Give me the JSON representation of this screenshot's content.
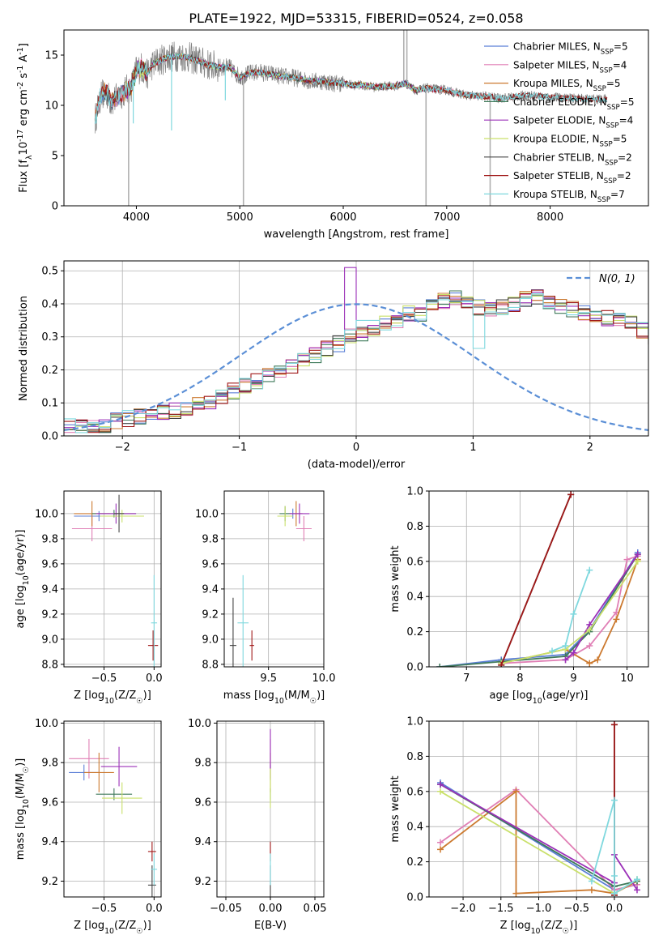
{
  "figure_title": "PLATE=1922, MJD=53315, FIBERID=0524, z=0.058",
  "colors": {
    "Chabrier MILES": "#5b7fd6",
    "Salpeter MILES": "#e07fb5",
    "Kroupa MILES": "#cc7a30",
    "Chabrier ELODIE": "#3f7a5a",
    "Salpeter ELODIE": "#9b30b8",
    "Kroupa ELODIE": "#c9e06a",
    "Chabrier STELIB": "#444444",
    "Salpeter STELIB": "#a01818",
    "Kroupa STELIB": "#7fd8de",
    "data": "#808080",
    "normal": "#5b8fd6"
  },
  "chart_data": [
    {
      "id": "spectrum",
      "type": "line",
      "title": "PLATE=1922, MJD=53315, FIBERID=0524, z=0.058",
      "xlabel": "wavelength [Angstrom, rest frame]",
      "ylabel": "Flux [f$_\\lambda$10$^{-17}$ erg cm$^{-2}$ s$^{-1}$ A$^{-1}$]",
      "xlim": [
        3300,
        8950
      ],
      "ylim": [
        0,
        17.5
      ],
      "xticks": [
        4000,
        5000,
        6000,
        7000,
        8000
      ],
      "yticks": [
        0,
        5,
        10,
        15
      ],
      "legend_position": "top-right",
      "legend": [
        {
          "name": "Chabrier MILES, N$_{SSP}$=5",
          "key": "Chabrier MILES"
        },
        {
          "name": "Salpeter MILES, N$_{SSP}$=4",
          "key": "Salpeter MILES"
        },
        {
          "name": "Kroupa MILES, N$_{SSP}$=5",
          "key": "Kroupa MILES"
        },
        {
          "name": "Chabrier ELODIE, N$_{SSP}$=5",
          "key": "Chabrier ELODIE"
        },
        {
          "name": "Salpeter ELODIE, N$_{SSP}$=4",
          "key": "Salpeter ELODIE"
        },
        {
          "name": "Kroupa ELODIE, N$_{SSP}$=5",
          "key": "Kroupa ELODIE"
        },
        {
          "name": "Chabrier STELIB, N$_{SSP}$=2",
          "key": "Chabrier STELIB"
        },
        {
          "name": "Salpeter STELIB, N$_{SSP}$=2",
          "key": "Salpeter STELIB"
        },
        {
          "name": "Kroupa STELIB, N$_{SSP}$=7",
          "key": "Kroupa STELIB"
        }
      ],
      "continuum": {
        "x": [
          3600,
          3650,
          3700,
          3750,
          3800,
          3850,
          3900,
          3950,
          4000,
          4050,
          4100,
          4150,
          4200,
          4300,
          4400,
          4500,
          4600,
          4700,
          4800,
          4900,
          5000,
          5100,
          5200,
          5300,
          5400,
          5500,
          5600,
          5700,
          5800,
          5900,
          6000,
          6100,
          6200,
          6300,
          6400,
          6500,
          6600,
          6700,
          6800,
          6900,
          7000,
          7100,
          7200,
          7300,
          7400,
          7500,
          7600,
          7700,
          7800,
          8000,
          8200,
          8400
        ],
        "y": [
          8.5,
          10.8,
          11.5,
          10.4,
          10.6,
          11.2,
          11.5,
          11.8,
          13.5,
          13.8,
          13.0,
          14.0,
          14.3,
          14.8,
          14.9,
          14.8,
          14.4,
          14.0,
          13.8,
          13.8,
          12.8,
          13.2,
          13.3,
          13.1,
          12.9,
          12.8,
          12.6,
          12.4,
          12.4,
          12.2,
          12.2,
          12.0,
          12.0,
          11.8,
          11.9,
          11.9,
          12.2,
          11.5,
          11.7,
          11.6,
          11.5,
          11.2,
          11.0,
          10.9,
          10.9,
          10.7,
          10.8,
          10.9,
          11.0,
          10.8,
          10.7,
          10.6
        ]
      }
    },
    {
      "id": "residuals",
      "type": "histogram",
      "xlabel": "(data-model)/error",
      "ylabel": "Normed distribution",
      "xlim": [
        -2.5,
        2.5
      ],
      "ylim": [
        0,
        0.53
      ],
      "xticks": [
        -2,
        -1,
        0,
        1,
        2
      ],
      "yticks": [
        0.0,
        0.1,
        0.2,
        0.3,
        0.4,
        0.5
      ],
      "grid": true,
      "legend_position": "top-right",
      "legend": "$\\mathcal{N}(0, 1)$",
      "bin_width": 0.1,
      "bin_start": -2.5,
      "base_counts": [
        0.035,
        0.033,
        0.03,
        0.032,
        0.045,
        0.053,
        0.06,
        0.063,
        0.07,
        0.075,
        0.085,
        0.095,
        0.1,
        0.12,
        0.135,
        0.15,
        0.165,
        0.18,
        0.2,
        0.21,
        0.225,
        0.245,
        0.265,
        0.28,
        0.3,
        0.31,
        0.32,
        0.34,
        0.35,
        0.37,
        0.37,
        0.39,
        0.41,
        0.42,
        0.41,
        0.39,
        0.38,
        0.39,
        0.4,
        0.415,
        0.42,
        0.41,
        0.39,
        0.385,
        0.37,
        0.36,
        0.355,
        0.35,
        0.34,
        0.32,
        0.3,
        0.28,
        0.27,
        0.25,
        0.235,
        0.22,
        0.2,
        0.18,
        0.165,
        0.15,
        0.135,
        0.125,
        0.11,
        0.1,
        0.09,
        0.08,
        0.07,
        0.065,
        0.06,
        0.055,
        0.05,
        0.045,
        0.042,
        0.035,
        0.03
      ]
    },
    {
      "id": "age_vs_Z",
      "type": "errorbar",
      "xlabel": "Z [log$_{10}$($Z/Z_\\odot$)]",
      "ylabel": "age  [log$_{10}$($age/yr$)]",
      "xlim": [
        -0.9,
        0.07
      ],
      "ylim": [
        8.78,
        10.18
      ],
      "xticks": [
        -0.5,
        0.0
      ],
      "yticks": [
        8.8,
        9.0,
        9.2,
        9.4,
        9.6,
        9.8,
        10.0
      ],
      "grid": true,
      "points": [
        {
          "key": "Chabrier MILES",
          "x": -0.55,
          "y": 9.98,
          "xerr": 0.25,
          "yerr": 0.04
        },
        {
          "key": "Salpeter MILES",
          "x": -0.62,
          "y": 9.88,
          "xerr": 0.2,
          "yerr": 0.1
        },
        {
          "key": "Kroupa MILES",
          "x": -0.62,
          "y": 10.0,
          "xerr": 0.18,
          "yerr": 0.1
        },
        {
          "key": "Chabrier ELODIE",
          "x": -0.4,
          "y": 10.0,
          "xerr": 0.22,
          "yerr": 0.03
        },
        {
          "key": "Salpeter ELODIE",
          "x": -0.38,
          "y": 10.0,
          "xerr": 0.2,
          "yerr": 0.08
        },
        {
          "key": "Kroupa ELODIE",
          "x": -0.32,
          "y": 9.98,
          "xerr": 0.22,
          "yerr": 0.05
        },
        {
          "key": "Chabrier STELIB",
          "x": -0.35,
          "y": 10.0,
          "xerr": 0.05,
          "yerr": 0.15
        },
        {
          "key": "Salpeter STELIB",
          "x": -0.01,
          "y": 8.95,
          "xerr": 0.05,
          "yerr": 0.12
        },
        {
          "key": "Kroupa STELIB",
          "x": 0.0,
          "y": 9.13,
          "xerr": 0.03,
          "yerr": 0.38
        }
      ]
    },
    {
      "id": "age_vs_mass",
      "type": "errorbar",
      "xlabel": "mass [log$_{10}$($M/M_\\odot$)]",
      "xlim": [
        9.1,
        10.0
      ],
      "ylim": [
        8.78,
        10.18
      ],
      "xticks": [
        9.5,
        10.0
      ],
      "yticks": [
        8.8,
        9.0,
        9.2,
        9.4,
        9.6,
        9.8,
        10.0
      ],
      "grid": true,
      "points": [
        {
          "key": "Chabrier MILES",
          "x": 9.72,
          "y": 10.0,
          "xerr": 0.08,
          "yerr": 0.04
        },
        {
          "key": "Salpeter MILES",
          "x": 9.82,
          "y": 9.88,
          "xerr": 0.07,
          "yerr": 0.1
        },
        {
          "key": "Kroupa MILES",
          "x": 9.75,
          "y": 10.0,
          "xerr": 0.06,
          "yerr": 0.1
        },
        {
          "key": "Chabrier ELODIE",
          "x": 9.65,
          "y": 10.0,
          "xerr": 0.05,
          "yerr": 0.06
        },
        {
          "key": "Salpeter ELODIE",
          "x": 9.78,
          "y": 10.0,
          "xerr": 0.09,
          "yerr": 0.08
        },
        {
          "key": "Kroupa ELODIE",
          "x": 9.65,
          "y": 9.98,
          "xerr": 0.07,
          "yerr": 0.08
        },
        {
          "key": "Chabrier STELIB",
          "x": 9.18,
          "y": 8.95,
          "xerr": 0.03,
          "yerr": 0.38
        },
        {
          "key": "Salpeter STELIB",
          "x": 9.35,
          "y": 8.95,
          "xerr": 0.02,
          "yerr": 0.12
        },
        {
          "key": "Kroupa STELIB",
          "x": 9.27,
          "y": 9.13,
          "xerr": 0.05,
          "yerr": 0.38
        }
      ]
    },
    {
      "id": "weight_vs_age",
      "type": "line",
      "xlabel": "age  [log$_{10}$($age/yr$)]",
      "ylabel": "mass weight",
      "xlim": [
        6.3,
        10.4
      ],
      "ylim": [
        0,
        1.0
      ],
      "xticks": [
        7,
        8,
        9,
        10
      ],
      "yticks": [
        0.0,
        0.2,
        0.4,
        0.6,
        0.8,
        1.0
      ],
      "grid": true,
      "series": [
        {
          "key": "Chabrier MILES",
          "x": [
            6.5,
            7.65,
            8.85,
            9.3,
            10.2
          ],
          "y": [
            0.0,
            0.04,
            0.07,
            0.21,
            0.65
          ]
        },
        {
          "key": "Salpeter MILES",
          "x": [
            7.65,
            8.85,
            9.3,
            9.8,
            10.0,
            10.2
          ],
          "y": [
            0.02,
            0.04,
            0.12,
            0.31,
            0.61,
            0.63
          ]
        },
        {
          "key": "Kroupa MILES",
          "x": [
            7.65,
            8.85,
            9.3,
            9.45,
            9.8,
            10.2
          ],
          "y": [
            0.02,
            0.1,
            0.02,
            0.04,
            0.27,
            0.61
          ]
        },
        {
          "key": "Chabrier ELODIE",
          "x": [
            6.5,
            7.65,
            8.85,
            9.3,
            10.2
          ],
          "y": [
            0.0,
            0.03,
            0.06,
            0.2,
            0.64
          ]
        },
        {
          "key": "Salpeter ELODIE",
          "x": [
            8.85,
            9.0,
            9.3,
            10.2
          ],
          "y": [
            0.04,
            0.08,
            0.24,
            0.64
          ]
        },
        {
          "key": "Kroupa ELODIE",
          "x": [
            7.65,
            8.85,
            9.3,
            10.2
          ],
          "y": [
            0.02,
            0.1,
            0.21,
            0.6
          ]
        },
        {
          "key": "Chabrier STELIB",
          "x": [
            7.65,
            8.95
          ],
          "y": [
            0.01,
            0.98
          ]
        },
        {
          "key": "Salpeter STELIB",
          "x": [
            7.65,
            8.95
          ],
          "y": [
            0.01,
            0.98
          ]
        },
        {
          "key": "Kroupa STELIB",
          "x": [
            8.6,
            8.85,
            9.0,
            9.3
          ],
          "y": [
            0.09,
            0.12,
            0.3,
            0.55
          ]
        }
      ]
    },
    {
      "id": "mass_vs_Z",
      "type": "errorbar",
      "xlabel": "Z [log$_{10}$($Z/Z_\\odot$)]",
      "ylabel": "mass [log$_{10}$($M/M_\\odot$)]",
      "xlim": [
        -0.9,
        0.07
      ],
      "ylim": [
        9.12,
        10.01
      ],
      "xticks": [
        -0.5,
        0.0
      ],
      "yticks": [
        9.2,
        9.4,
        9.6,
        9.8,
        10.0
      ],
      "grid": true,
      "points": [
        {
          "key": "Chabrier MILES",
          "x": -0.7,
          "y": 9.75,
          "xerr": 0.15,
          "yerr": 0.04
        },
        {
          "key": "Salpeter MILES",
          "x": -0.65,
          "y": 9.82,
          "xerr": 0.2,
          "yerr": 0.1
        },
        {
          "key": "Kroupa MILES",
          "x": -0.55,
          "y": 9.75,
          "xerr": 0.15,
          "yerr": 0.1
        },
        {
          "key": "Chabrier ELODIE",
          "x": -0.4,
          "y": 9.64,
          "xerr": 0.18,
          "yerr": 0.03
        },
        {
          "key": "Salpeter ELODIE",
          "x": -0.35,
          "y": 9.78,
          "xerr": 0.18,
          "yerr": 0.1
        },
        {
          "key": "Kroupa ELODIE",
          "x": -0.32,
          "y": 9.62,
          "xerr": 0.2,
          "yerr": 0.08
        },
        {
          "key": "Chabrier STELIB",
          "x": -0.02,
          "y": 9.18,
          "xerr": 0.04,
          "yerr": 0.1
        },
        {
          "key": "Salpeter STELIB",
          "x": -0.02,
          "y": 9.35,
          "xerr": 0.04,
          "yerr": 0.05
        },
        {
          "key": "Kroupa STELIB",
          "x": 0.0,
          "y": 9.26,
          "xerr": 0.03,
          "yerr": 0.08
        }
      ]
    },
    {
      "id": "mass_vs_ebv",
      "type": "errorbar",
      "xlabel": "E(B-V)",
      "xlim": [
        -0.06,
        0.06
      ],
      "ylim": [
        9.12,
        10.01
      ],
      "xticks": [
        -0.05,
        0.0,
        0.05
      ],
      "yticks": [
        9.2,
        9.4,
        9.6,
        9.8,
        10.0
      ],
      "grid": true,
      "points": [
        {
          "key": "Chabrier MILES",
          "x": 0.0,
          "y": 9.75,
          "xerr": 0.0,
          "yerr": 0.04
        },
        {
          "key": "Salpeter MILES",
          "x": 0.0,
          "y": 9.82,
          "xerr": 0.0,
          "yerr": 0.1
        },
        {
          "key": "Kroupa MILES",
          "x": 0.0,
          "y": 9.75,
          "xerr": 0.0,
          "yerr": 0.1
        },
        {
          "key": "Chabrier ELODIE",
          "x": 0.0,
          "y": 9.64,
          "xerr": 0.0,
          "yerr": 0.03
        },
        {
          "key": "Salpeter ELODIE",
          "x": 0.0,
          "y": 9.87,
          "xerr": 0.0,
          "yerr": 0.1
        },
        {
          "key": "Kroupa ELODIE",
          "x": 0.0,
          "y": 9.67,
          "xerr": 0.0,
          "yerr": 0.1
        },
        {
          "key": "Chabrier STELIB",
          "x": 0.0,
          "y": 9.18,
          "xerr": 0.0,
          "yerr": 0.1
        },
        {
          "key": "Salpeter STELIB",
          "x": 0.0,
          "y": 9.35,
          "xerr": 0.0,
          "yerr": 0.05
        },
        {
          "key": "Kroupa STELIB",
          "x": 0.0,
          "y": 9.26,
          "xerr": 0.0,
          "yerr": 0.08
        }
      ]
    },
    {
      "id": "weight_vs_Z",
      "type": "line",
      "xlabel": "Z [log$_{10}$($Z/Z_\\odot$)]",
      "ylabel": "mass weight",
      "xlim": [
        -2.45,
        0.45
      ],
      "ylim": [
        0,
        1.0
      ],
      "xticks": [
        -2.0,
        -1.5,
        -1.0,
        -0.5,
        0.0
      ],
      "yticks": [
        0.0,
        0.2,
        0.4,
        0.6,
        0.8,
        1.0
      ],
      "grid": true,
      "series": [
        {
          "key": "Chabrier MILES",
          "x": [
            -2.3,
            0.0,
            0.3
          ],
          "y": [
            0.65,
            0.04,
            0.07
          ]
        },
        {
          "key": "Salpeter MILES",
          "x": [
            -2.3,
            -1.3,
            0.0,
            0.3
          ],
          "y": [
            0.31,
            0.61,
            0.04,
            0.07
          ]
        },
        {
          "key": "Kroupa MILES",
          "x": [
            -2.3,
            -1.3,
            -1.3,
            -0.3,
            0.0,
            0.3
          ],
          "y": [
            0.27,
            0.6,
            0.02,
            0.04,
            0.02,
            0.09
          ]
        },
        {
          "key": "Chabrier ELODIE",
          "x": [
            -2.3,
            0.0,
            0.3
          ],
          "y": [
            0.64,
            0.06,
            0.09
          ]
        },
        {
          "key": "Salpeter ELODIE",
          "x": [
            -2.3,
            0.0,
            0.0,
            0.3
          ],
          "y": [
            0.64,
            0.08,
            0.24,
            0.04
          ]
        },
        {
          "key": "Kroupa ELODIE",
          "x": [
            -2.3,
            0.0,
            0.3
          ],
          "y": [
            0.6,
            0.02,
            0.1
          ]
        },
        {
          "key": "Chabrier STELIB",
          "x": [
            0.0,
            0.0
          ],
          "y": [
            0.01,
            0.98
          ]
        },
        {
          "key": "Salpeter STELIB",
          "x": [
            0.0,
            0.0
          ],
          "y": [
            0.01,
            0.98
          ]
        },
        {
          "key": "Kroupa STELIB",
          "x": [
            -0.3,
            0.0,
            0.0,
            0.0,
            0.3
          ],
          "y": [
            0.09,
            0.55,
            0.12,
            0.02,
            0.1
          ]
        }
      ]
    }
  ]
}
